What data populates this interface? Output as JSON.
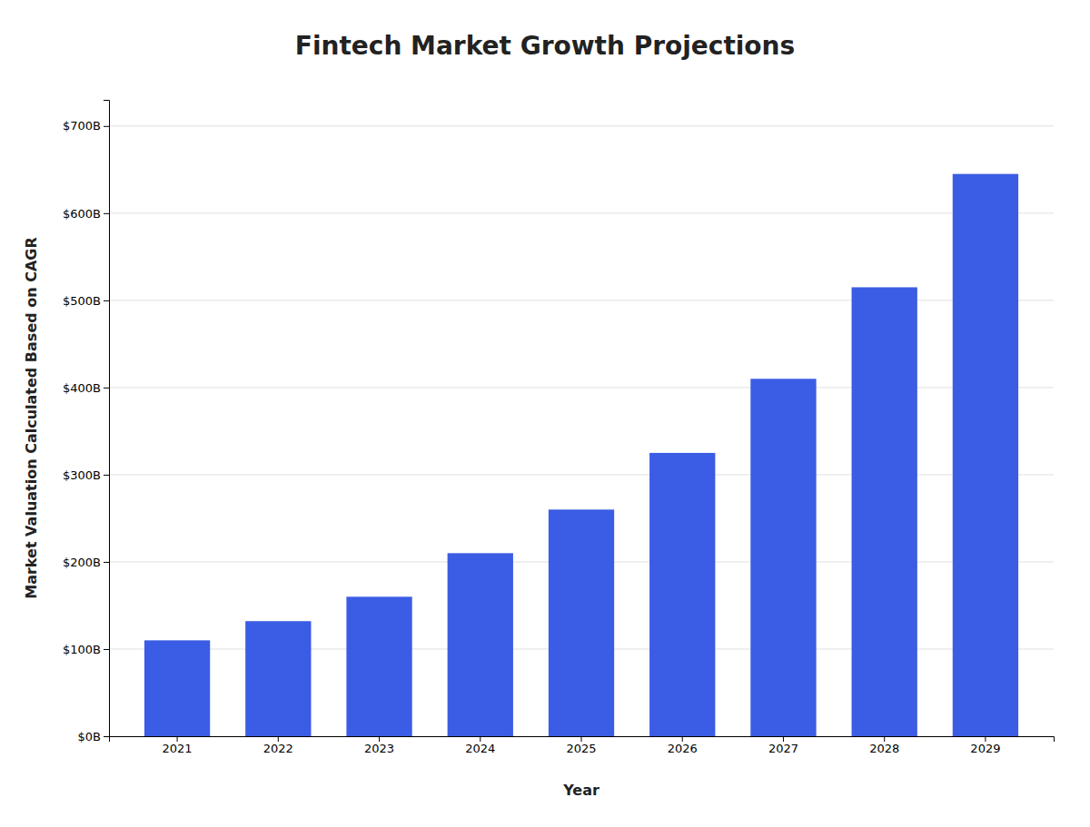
{
  "chart_data": {
    "type": "bar",
    "title": "Fintech Market Growth Projections",
    "x_label": "Year",
    "y_label": "Market Valuation Calculated Based on CAGR",
    "categories": [
      "2021",
      "2022",
      "2023",
      "2024",
      "2025",
      "2026",
      "2027",
      "2028",
      "2029"
    ],
    "values": [
      110,
      132,
      160,
      210,
      260,
      325,
      410,
      515,
      645
    ],
    "color": "#3B5CE4",
    "ylim": [
      0,
      730
    ],
    "yticks": [
      {
        "value": 0,
        "label": "$0B"
      },
      {
        "value": 100,
        "label": "$100B"
      },
      {
        "value": 200,
        "label": "$200B"
      },
      {
        "value": 300,
        "label": "$300B"
      },
      {
        "value": 400,
        "label": "$400B"
      },
      {
        "value": 500,
        "label": "$500B"
      },
      {
        "value": 600,
        "label": "$600B"
      },
      {
        "value": 700,
        "label": "$700B"
      }
    ],
    "grid": true
  }
}
